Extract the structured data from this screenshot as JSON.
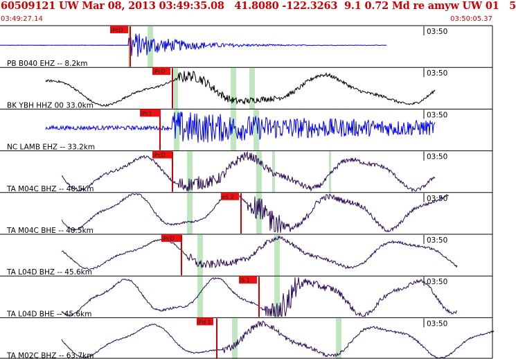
{
  "header": {
    "title": "60509121 UW Mar 08, 2013 03:49:35.08   41.8080 -122.3263  9.1 0.72 Md re amyw UW 01   5",
    "start_time": "03:49:27.14",
    "end_time": "03:50:05.37"
  },
  "colors": {
    "header_text": "#cc0000",
    "pick_box": "#ee1111",
    "pick_band": "#bfe6bf",
    "blue_trace": "#0000ee",
    "black_trace": "#000000",
    "purple_trace": "#2a0a55"
  },
  "traces": [
    {
      "label": "PB B040 EHZ -- 8.2km",
      "time_mark": "03:50",
      "pick": "iPcD",
      "color": "blue_trace"
    },
    {
      "label": "BK YBH HHZ 00 33.0km",
      "time_mark": "03:50",
      "pick": "iPcD",
      "color": "black_trace"
    },
    {
      "label": "NC LAMB EHZ -- 33.2km",
      "time_mark": "03:50",
      "pick": "iPc1",
      "color": "blue_trace"
    },
    {
      "label": "TA M04C BHZ -- 40.5km",
      "time_mark": "03:50",
      "pick": "iPcD",
      "color": "purple_trace"
    },
    {
      "label": "TA M04C BHE -- 40.5km",
      "time_mark": "03:50",
      "pick": "eS 2",
      "color": "purple_trace"
    },
    {
      "label": "TA L04D BHZ -- 45.6km",
      "time_mark": "03:50",
      "pick": "iPcD",
      "color": "purple_trace"
    },
    {
      "label": "TA L04D BHE -- 45.6km",
      "time_mark": "03:50",
      "pick": "iS 1",
      "color": "purple_trace"
    },
    {
      "label": "TA M02C BHZ -- 63.7km",
      "time_mark": "03:50",
      "pick": "iPd 1",
      "color": "purple_trace"
    }
  ]
}
